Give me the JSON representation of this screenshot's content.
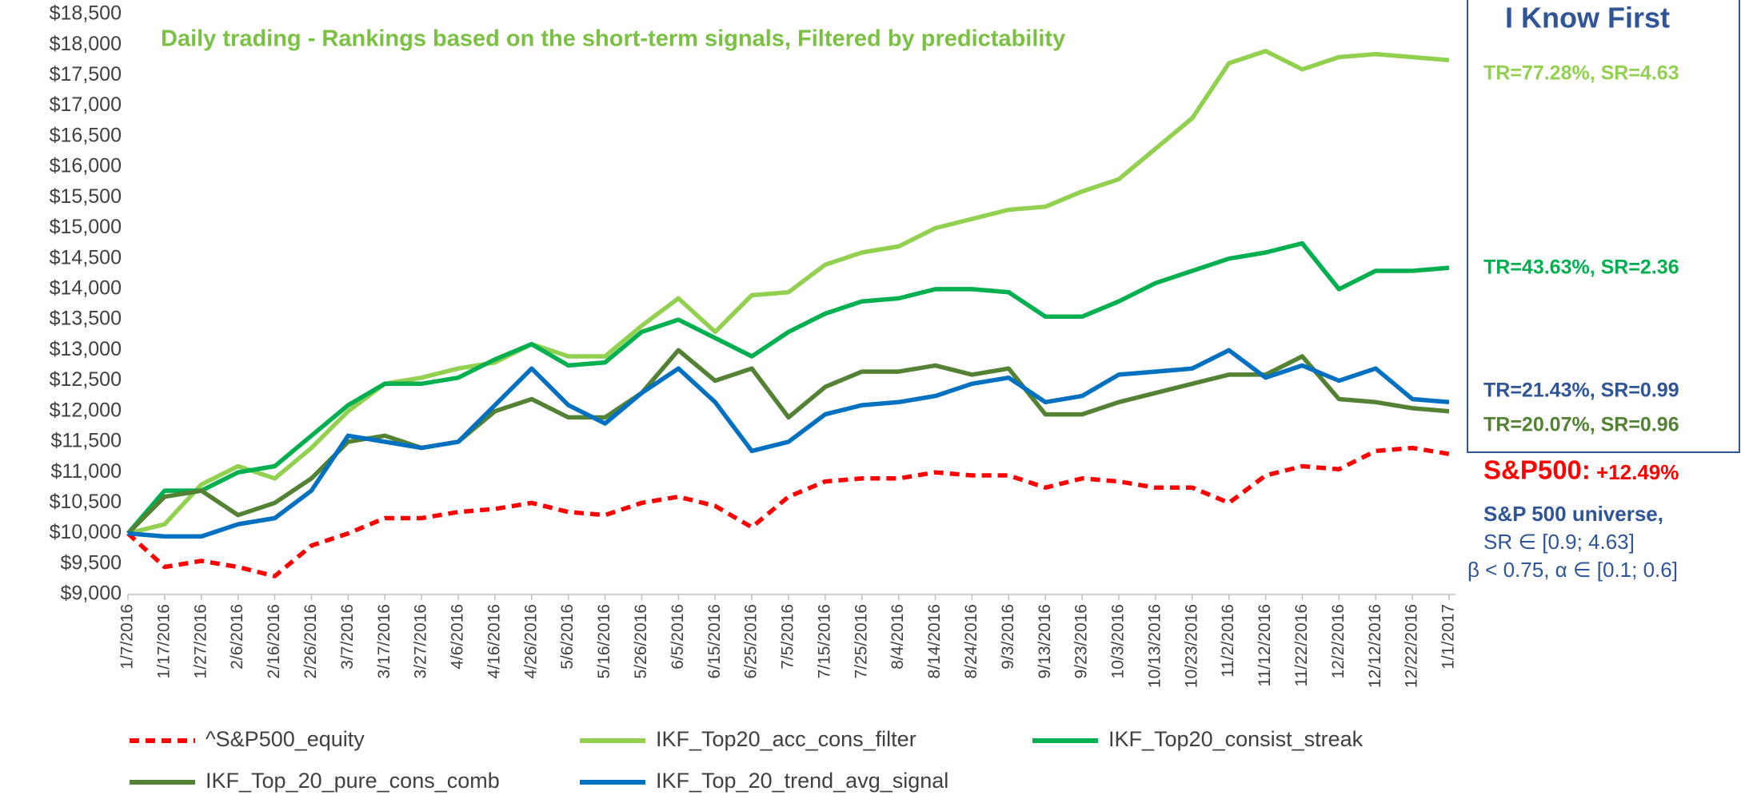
{
  "chart_data": {
    "type": "line",
    "title": "Daily trading - Rankings based on the short-term signals, Filtered by predictability",
    "categories": [
      "1/7/2016",
      "1/17/2016",
      "1/27/2016",
      "2/6/2016",
      "2/16/2016",
      "2/26/2016",
      "3/7/2016",
      "3/17/2016",
      "3/27/2016",
      "4/6/2016",
      "4/16/2016",
      "4/26/2016",
      "5/6/2016",
      "5/16/2016",
      "5/26/2016",
      "6/5/2016",
      "6/15/2016",
      "6/25/2016",
      "7/5/2016",
      "7/15/2016",
      "7/25/2016",
      "8/4/2016",
      "8/14/2016",
      "8/24/2016",
      "9/3/2016",
      "9/13/2016",
      "9/23/2016",
      "10/3/2016",
      "10/13/2016",
      "10/23/2016",
      "11/2/2016",
      "11/12/2016",
      "11/22/2016",
      "12/2/2016",
      "12/12/2016",
      "12/22/2016",
      "1/1/2017"
    ],
    "series": [
      {
        "name": "^S&P500_equity",
        "color": "#ff0000",
        "dash": true,
        "values": [
          10000,
          9450,
          9550,
          9450,
          9300,
          9800,
          10000,
          10250,
          10250,
          10350,
          10400,
          10500,
          10350,
          10300,
          10500,
          10600,
          10450,
          10100,
          10600,
          10850,
          10900,
          10900,
          11000,
          10950,
          10950,
          10750,
          10900,
          10850,
          10750,
          10750,
          10500,
          10950,
          11100,
          11050,
          11350,
          11400,
          11300
        ]
      },
      {
        "name": "IKF_Top20_acc_cons_filter",
        "color": "#92d050",
        "values": [
          10000,
          10150,
          10800,
          11100,
          10900,
          11400,
          12000,
          12450,
          12550,
          12700,
          12800,
          13100,
          12900,
          12900,
          13400,
          13850,
          13300,
          13900,
          13950,
          14400,
          14600,
          14700,
          15000,
          15150,
          15300,
          15350,
          15600,
          15800,
          16300,
          16800,
          17700,
          17900,
          17600,
          17800,
          17850,
          17800,
          17750
        ]
      },
      {
        "name": "IKF_Top20_consist_streak",
        "color": "#00b050",
        "values": [
          10000,
          10700,
          10700,
          11000,
          11100,
          11600,
          12100,
          12450,
          12450,
          12550,
          12850,
          13100,
          12750,
          12800,
          13300,
          13500,
          13200,
          12900,
          13300,
          13600,
          13800,
          13850,
          14000,
          14000,
          13950,
          13550,
          13550,
          13800,
          14100,
          14300,
          14500,
          14600,
          14750,
          14000,
          14300,
          14300,
          14350
        ]
      },
      {
        "name": "IKF_Top_20_pure_cons_comb",
        "color": "#548235",
        "values": [
          10000,
          10600,
          10700,
          10300,
          10500,
          10900,
          11500,
          11600,
          11400,
          11500,
          12000,
          12200,
          11900,
          11900,
          12300,
          13000,
          12500,
          12700,
          11900,
          12400,
          12650,
          12650,
          12750,
          12600,
          12700,
          11950,
          11950,
          12150,
          12300,
          12450,
          12600,
          12600,
          12900,
          12200,
          12150,
          12050,
          12000
        ]
      },
      {
        "name": "IKF_Top_20_trend_avg_signal",
        "color": "#0070c0",
        "values": [
          10000,
          9950,
          9950,
          10150,
          10250,
          10700,
          11600,
          11500,
          11400,
          11500,
          12100,
          12700,
          12100,
          11800,
          12300,
          12700,
          12150,
          11350,
          11500,
          11950,
          12100,
          12150,
          12250,
          12450,
          12550,
          12150,
          12250,
          12600,
          12650,
          12700,
          13000,
          12550,
          12750,
          12500,
          12700,
          12200,
          12150
        ]
      }
    ],
    "ylim": [
      9000,
      18500
    ],
    "yticks": [
      {
        "value": 9000,
        "label": "$9,000"
      },
      {
        "value": 9500,
        "label": "$9,500"
      },
      {
        "value": 10000,
        "label": "$10,000"
      },
      {
        "value": 10500,
        "label": "$10,500"
      },
      {
        "value": 11000,
        "label": "$11,000"
      },
      {
        "value": 11500,
        "label": "$11,500"
      },
      {
        "value": 12000,
        "label": "$12,000"
      },
      {
        "value": 12500,
        "label": "$12,500"
      },
      {
        "value": 13000,
        "label": "$13,000"
      },
      {
        "value": 13500,
        "label": "$13,500"
      },
      {
        "value": 14000,
        "label": "$14,000"
      },
      {
        "value": 14500,
        "label": "$14,500"
      },
      {
        "value": 15000,
        "label": "$15,000"
      },
      {
        "value": 15500,
        "label": "$15,500"
      },
      {
        "value": 16000,
        "label": "$16,000"
      },
      {
        "value": 16500,
        "label": "$16,500"
      },
      {
        "value": 17000,
        "label": "$17,000"
      },
      {
        "value": 17500,
        "label": "$17,500"
      },
      {
        "value": 18000,
        "label": "$18,000"
      },
      {
        "value": 18500,
        "label": "$18,500"
      }
    ],
    "grid": false,
    "annotations": [
      {
        "text": "I Know First",
        "color": "#2f5597"
      },
      {
        "text": "TR=77.28%, SR=4.63",
        "color": "#92d050"
      },
      {
        "text": "TR=43.63%, SR=2.36",
        "color": "#00b050"
      },
      {
        "text": "TR=21.43%, SR=0.99",
        "color": "#2f5597"
      },
      {
        "text": "TR=20.07%, SR=0.96",
        "color": "#548235"
      },
      {
        "text": "S&P500:",
        "color": "#ff0000"
      },
      {
        "text": "+12.49%",
        "color": "#ff0000"
      },
      {
        "text": "S&P 500 universe,",
        "color": "#2f5597"
      },
      {
        "text": "SR ∈ [0.9; 4.63]",
        "color": "#2f5597"
      },
      {
        "text": "β < 0.75, α ∈ [0.1; 0.6]",
        "color": "#2f5597"
      }
    ]
  }
}
